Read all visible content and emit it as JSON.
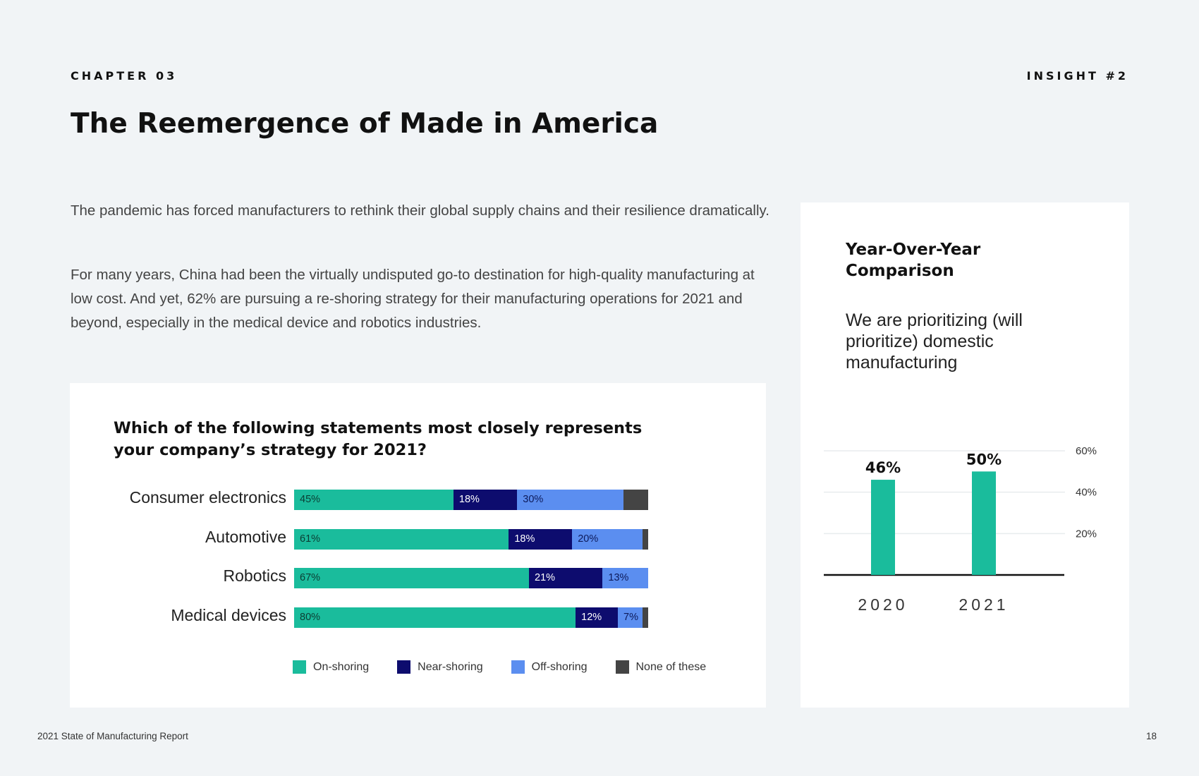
{
  "header": {
    "chapter": "CHAPTER 03",
    "insight": "INSIGHT #2",
    "title": "The Reemergence of Made in America"
  },
  "body": {
    "para1": "The pandemic has forced manufacturers to rethink their global supply chains and their resilience dramatically.",
    "para2": "For many years, China had been the virtually undisputed go-to destination for high-quality manufacturing at low cost. And yet, 62% are pursuing a re-shoring strategy for their manufacturing operations for 2021 and beyond, especially in the medical device and robotics industries."
  },
  "colors": {
    "on_shoring": "#1abc9c",
    "near_shoring": "#0d0c6e",
    "off_shoring": "#5b8ef0",
    "none": "#444444",
    "yoy_bar": "#1abc9c"
  },
  "chart_data": [
    {
      "type": "bar",
      "orientation": "horizontal-stacked",
      "title": "Which of the following statements most closely represents your company’s strategy for 2021?",
      "categories": [
        "Consumer electronics",
        "Automotive",
        "Robotics",
        "Medical devices"
      ],
      "series": [
        {
          "name": "On-shoring",
          "values": [
            45,
            61,
            67,
            80
          ],
          "labels": [
            "45%",
            "61%",
            "67%",
            "80%"
          ]
        },
        {
          "name": "Near-shoring",
          "values": [
            18,
            18,
            21,
            12
          ],
          "labels": [
            "18%",
            "18%",
            "21%",
            "12%"
          ]
        },
        {
          "name": "Off-shoring",
          "values": [
            30,
            20,
            13,
            7
          ],
          "labels": [
            "30%",
            "20%",
            "13%",
            "7%"
          ]
        },
        {
          "name": "None of these",
          "values": [
            7,
            1,
            0,
            1
          ],
          "labels": [
            "",
            "",
            "",
            ""
          ]
        }
      ],
      "legend": "bottom"
    },
    {
      "type": "bar",
      "title": "Year-Over-Year Comparison",
      "subtitle": "We are prioritizing (will prioritize) domestic manufacturing",
      "categories": [
        "2020",
        "2021"
      ],
      "values": [
        46,
        50
      ],
      "value_labels": [
        "46%",
        "50%"
      ],
      "yticks": [
        "20%",
        "40%",
        "60%"
      ],
      "ytick_values": [
        20,
        40,
        60
      ],
      "ylim": [
        0,
        60
      ],
      "grid": true
    }
  ],
  "footer": {
    "report": "2021 State of Manufacturing Report",
    "page": "18"
  }
}
